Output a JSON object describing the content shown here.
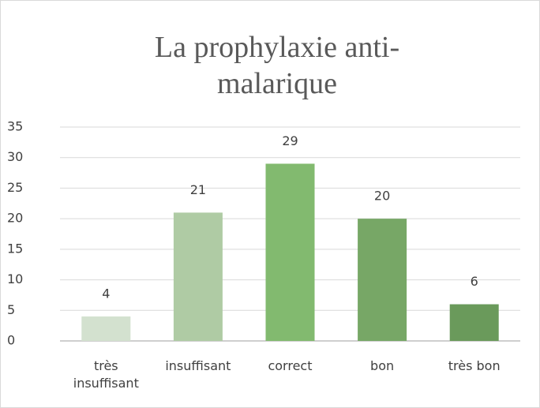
{
  "chart_data": {
    "type": "bar",
    "title": "La prophylaxie anti-malarique",
    "categories": [
      "très insuffisant",
      "insuffisant",
      "correct",
      "bon",
      "très bon"
    ],
    "values": [
      4,
      21,
      29,
      20,
      6
    ],
    "colors": [
      "#d3e1cf",
      "#afcba4",
      "#82ba6f",
      "#77a766",
      "#6a9a5b"
    ],
    "ylim": [
      0,
      35
    ],
    "yticks": [
      0,
      5,
      10,
      15,
      20,
      25,
      30,
      35
    ],
    "grid": true
  }
}
